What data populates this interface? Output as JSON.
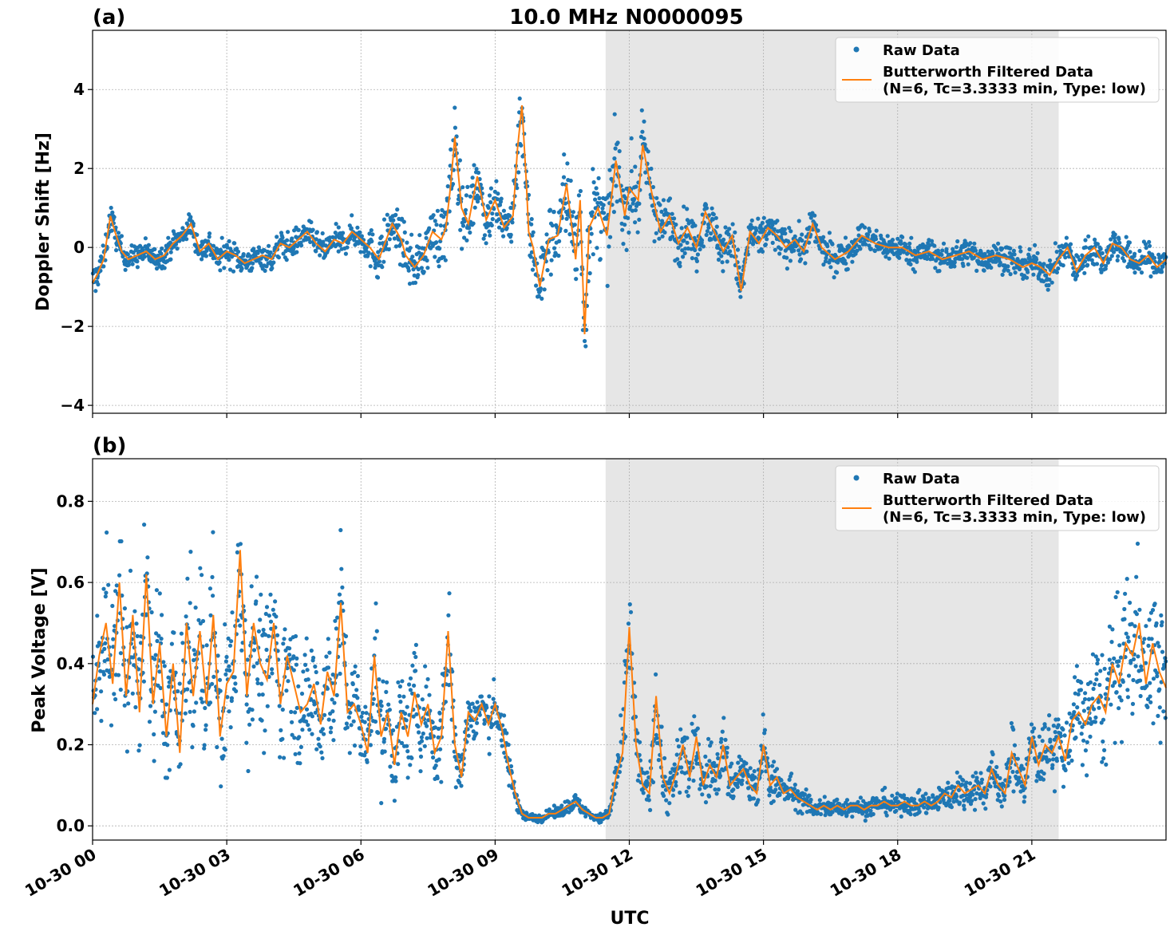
{
  "figure": {
    "title": "10.0 MHz N0000095",
    "xlabel": "UTC",
    "x_ticks": [
      "10-30 00",
      "10-30 03",
      "10-30 06",
      "10-30 09",
      "10-30 12",
      "10-30 15",
      "10-30 18",
      "10-30 21"
    ]
  },
  "colors": {
    "raw": "#1f77b4",
    "filtered": "#ff7f0e",
    "shade": "#e6e6e6",
    "grid": "#b0b0b0"
  },
  "chart_data": [
    {
      "type": "scatter",
      "panel_label": "(a)",
      "ylabel": "Doppler Shift [Hz]",
      "x_unit": "hours UTC on 10-30",
      "xlim": [
        0,
        24
      ],
      "ylim": [
        -4.2,
        5.5
      ],
      "y_ticks": [
        "4",
        "2",
        "0",
        "−2",
        "−4"
      ],
      "y_tick_values": [
        4,
        2,
        0,
        -2,
        -4
      ],
      "grid": true,
      "legend_position": "top-right",
      "legend": [
        "Raw Data",
        "Butterworth Filtered Data",
        "(N=6, Tc=3.3333 min, Type: low)"
      ],
      "shaded_interval": [
        11.47,
        21.6
      ],
      "series": [
        {
          "name": "Butterworth Filtered Data",
          "kind": "line",
          "x": [
            0,
            0.1,
            0.25,
            0.4,
            0.5,
            0.65,
            0.8,
            1.0,
            1.2,
            1.4,
            1.6,
            1.8,
            2.0,
            2.2,
            2.4,
            2.6,
            2.8,
            3.0,
            3.2,
            3.4,
            3.6,
            3.8,
            4.0,
            4.2,
            4.4,
            4.6,
            4.8,
            5.0,
            5.2,
            5.4,
            5.6,
            5.8,
            6.0,
            6.2,
            6.4,
            6.5,
            6.7,
            6.9,
            7.0,
            7.2,
            7.4,
            7.6,
            7.8,
            7.9,
            8.0,
            8.1,
            8.25,
            8.4,
            8.6,
            8.8,
            9.0,
            9.2,
            9.4,
            9.5,
            9.6,
            9.7,
            9.75,
            9.85,
            10.0,
            10.2,
            10.4,
            10.6,
            10.8,
            10.9,
            11.0,
            11.1,
            11.3,
            11.5,
            11.7,
            11.9,
            12.0,
            12.2,
            12.3,
            12.5,
            12.7,
            12.9,
            13.1,
            13.3,
            13.5,
            13.7,
            13.9,
            14.1,
            14.3,
            14.5,
            14.7,
            14.9,
            15.1,
            15.3,
            15.5,
            15.7,
            15.9,
            16.1,
            16.3,
            16.6,
            16.9,
            17.2,
            17.5,
            17.8,
            18.1,
            18.4,
            18.7,
            19.0,
            19.3,
            19.6,
            19.9,
            20.2,
            20.5,
            20.8,
            21.0,
            21.2,
            21.4,
            21.6,
            21.8,
            22.0,
            22.2,
            22.4,
            22.6,
            22.8,
            23.0,
            23.2,
            23.4,
            23.6,
            23.8,
            24.0
          ],
          "y": [
            -0.9,
            -0.7,
            -0.3,
            0.8,
            0.4,
            -0.1,
            -0.3,
            -0.2,
            -0.1,
            -0.3,
            -0.2,
            0.1,
            0.3,
            0.6,
            -0.1,
            0.1,
            -0.3,
            -0.1,
            -0.2,
            -0.4,
            -0.3,
            -0.2,
            -0.3,
            0.1,
            0.0,
            0.2,
            0.4,
            0.1,
            -0.1,
            0.2,
            0.1,
            0.4,
            0.2,
            0.0,
            -0.3,
            0.0,
            0.6,
            0.2,
            -0.2,
            -0.5,
            -0.2,
            0.4,
            0.2,
            0.5,
            1.5,
            2.8,
            1.0,
            0.6,
            1.8,
            0.7,
            1.2,
            0.5,
            0.8,
            2.5,
            3.6,
            1.6,
            0.4,
            0.0,
            -1.0,
            0.2,
            0.3,
            1.6,
            -0.3,
            1.2,
            -2.2,
            0.5,
            1.0,
            0.3,
            2.2,
            0.8,
            1.5,
            1.2,
            2.6,
            1.4,
            0.4,
            0.8,
            0.1,
            0.5,
            0.0,
            0.9,
            0.4,
            -0.1,
            0.3,
            -1.1,
            0.4,
            0.1,
            0.5,
            0.3,
            0.0,
            0.2,
            -0.1,
            0.6,
            0.0,
            -0.3,
            -0.1,
            0.3,
            0.1,
            0.0,
            0.0,
            -0.2,
            -0.1,
            -0.3,
            -0.2,
            -0.1,
            -0.3,
            -0.2,
            -0.3,
            -0.5,
            -0.4,
            -0.5,
            -0.7,
            -0.3,
            0.0,
            -0.6,
            -0.2,
            0.0,
            -0.4,
            0.1,
            0.0,
            -0.3,
            -0.4,
            -0.2,
            -0.5,
            -0.3
          ]
        },
        {
          "name": "Raw Data",
          "kind": "points",
          "spread": [
            0.45,
            0.4,
            0.35,
            0.35,
            0.35,
            0.35,
            0.3,
            0.3,
            0.3,
            0.3,
            0.3,
            0.3,
            0.3,
            0.3,
            0.35,
            0.35,
            0.35,
            0.35,
            0.35,
            0.35,
            0.3,
            0.35,
            0.35,
            0.35,
            0.35,
            0.35,
            0.35,
            0.3,
            0.35,
            0.35,
            0.35,
            0.35,
            0.35,
            0.5,
            0.6,
            0.6,
            0.6,
            0.6,
            0.6,
            0.6,
            0.6,
            0.7,
            0.8,
            0.9,
            0.9,
            0.9,
            0.9,
            0.8,
            0.8,
            0.8,
            0.7,
            0.7,
            0.8,
            1.0,
            1.0,
            1.0,
            1.0,
            0.9,
            0.9,
            0.9,
            0.9,
            1.1,
            1.2,
            1.3,
            1.3,
            1.3,
            1.2,
            1.1,
            1.0,
            1.0,
            1.0,
            1.0,
            0.9,
            0.8,
            0.7,
            0.6,
            0.6,
            0.6,
            0.6,
            0.6,
            0.6,
            0.55,
            0.55,
            0.55,
            0.5,
            0.5,
            0.5,
            0.45,
            0.45,
            0.45,
            0.45,
            0.45,
            0.4,
            0.4,
            0.4,
            0.35,
            0.35,
            0.35,
            0.35,
            0.35,
            0.35,
            0.35,
            0.35,
            0.35,
            0.35,
            0.35,
            0.35,
            0.35,
            0.4,
            0.4,
            0.4,
            0.4,
            0.4,
            0.4,
            0.4,
            0.4,
            0.4,
            0.4,
            0.4,
            0.4,
            0.4,
            0.4,
            0.4,
            0.4
          ]
        }
      ]
    },
    {
      "type": "scatter",
      "panel_label": "(b)",
      "ylabel": "Peak Voltage [V]",
      "x_unit": "hours UTC on 10-30",
      "xlim": [
        0,
        24
      ],
      "ylim": [
        -0.035,
        0.905
      ],
      "y_ticks": [
        "0.8",
        "0.6",
        "0.4",
        "0.2",
        "0.0"
      ],
      "y_tick_values": [
        0.8,
        0.6,
        0.4,
        0.2,
        0.0
      ],
      "grid": true,
      "legend_position": "top-right",
      "legend": [
        "Raw Data",
        "Butterworth Filtered Data",
        "(N=6, Tc=3.3333 min, Type: low)"
      ],
      "shaded_interval": [
        11.47,
        21.6
      ],
      "series": [
        {
          "name": "Butterworth Filtered Data",
          "kind": "line",
          "x": [
            0,
            0.15,
            0.3,
            0.45,
            0.6,
            0.75,
            0.9,
            1.05,
            1.2,
            1.35,
            1.5,
            1.65,
            1.8,
            1.95,
            2.1,
            2.25,
            2.4,
            2.55,
            2.7,
            2.85,
            3.0,
            3.15,
            3.3,
            3.45,
            3.6,
            3.75,
            3.9,
            4.05,
            4.2,
            4.35,
            4.5,
            4.65,
            4.8,
            4.95,
            5.1,
            5.25,
            5.4,
            5.55,
            5.7,
            5.85,
            6.0,
            6.15,
            6.3,
            6.45,
            6.6,
            6.75,
            6.9,
            7.05,
            7.2,
            7.35,
            7.5,
            7.65,
            7.8,
            7.95,
            8.1,
            8.25,
            8.4,
            8.55,
            8.7,
            8.85,
            9.0,
            9.15,
            9.3,
            9.45,
            9.6,
            9.75,
            9.9,
            10.05,
            10.2,
            10.35,
            10.5,
            10.65,
            10.8,
            10.95,
            11.1,
            11.25,
            11.4,
            11.55,
            11.7,
            11.85,
            12.0,
            12.15,
            12.3,
            12.45,
            12.6,
            12.75,
            12.9,
            13.05,
            13.2,
            13.35,
            13.5,
            13.65,
            13.8,
            13.95,
            14.1,
            14.25,
            14.4,
            14.55,
            14.7,
            14.85,
            15.0,
            15.15,
            15.3,
            15.45,
            15.6,
            15.75,
            15.9,
            16.05,
            16.2,
            16.35,
            16.5,
            16.65,
            16.8,
            16.95,
            17.1,
            17.25,
            17.4,
            17.55,
            17.7,
            17.85,
            18.0,
            18.15,
            18.3,
            18.45,
            18.6,
            18.75,
            18.9,
            19.05,
            19.2,
            19.35,
            19.5,
            19.65,
            19.8,
            19.95,
            20.1,
            20.25,
            20.4,
            20.55,
            20.7,
            20.85,
            21.0,
            21.15,
            21.3,
            21.45,
            21.6,
            21.75,
            21.9,
            22.05,
            22.2,
            22.35,
            22.5,
            22.65,
            22.8,
            22.95,
            23.1,
            23.25,
            23.4,
            23.55,
            23.7,
            23.85,
            24.0
          ],
          "y": [
            0.3,
            0.42,
            0.5,
            0.35,
            0.6,
            0.32,
            0.52,
            0.28,
            0.62,
            0.3,
            0.45,
            0.22,
            0.4,
            0.18,
            0.5,
            0.32,
            0.48,
            0.3,
            0.52,
            0.22,
            0.35,
            0.38,
            0.68,
            0.32,
            0.5,
            0.4,
            0.36,
            0.5,
            0.3,
            0.42,
            0.35,
            0.28,
            0.3,
            0.35,
            0.25,
            0.38,
            0.32,
            0.55,
            0.28,
            0.3,
            0.25,
            0.18,
            0.42,
            0.22,
            0.28,
            0.15,
            0.28,
            0.22,
            0.33,
            0.25,
            0.3,
            0.18,
            0.22,
            0.48,
            0.2,
            0.12,
            0.28,
            0.26,
            0.3,
            0.25,
            0.3,
            0.24,
            0.15,
            0.08,
            0.03,
            0.02,
            0.02,
            0.02,
            0.03,
            0.03,
            0.04,
            0.05,
            0.06,
            0.04,
            0.03,
            0.02,
            0.02,
            0.03,
            0.12,
            0.18,
            0.49,
            0.2,
            0.1,
            0.08,
            0.32,
            0.12,
            0.08,
            0.13,
            0.2,
            0.12,
            0.22,
            0.1,
            0.15,
            0.12,
            0.2,
            0.1,
            0.12,
            0.14,
            0.1,
            0.08,
            0.2,
            0.1,
            0.12,
            0.08,
            0.09,
            0.07,
            0.06,
            0.05,
            0.04,
            0.05,
            0.04,
            0.05,
            0.04,
            0.05,
            0.05,
            0.04,
            0.05,
            0.05,
            0.06,
            0.05,
            0.05,
            0.06,
            0.05,
            0.05,
            0.06,
            0.05,
            0.06,
            0.08,
            0.07,
            0.1,
            0.08,
            0.09,
            0.1,
            0.08,
            0.14,
            0.1,
            0.08,
            0.18,
            0.14,
            0.1,
            0.22,
            0.15,
            0.2,
            0.18,
            0.22,
            0.16,
            0.26,
            0.28,
            0.25,
            0.3,
            0.32,
            0.28,
            0.4,
            0.35,
            0.45,
            0.42,
            0.5,
            0.35,
            0.45,
            0.38,
            0.34
          ]
        },
        {
          "name": "Raw Data",
          "kind": "points",
          "spread": [
            0.18,
            0.2,
            0.2,
            0.18,
            0.2,
            0.2,
            0.18,
            0.18,
            0.2,
            0.2,
            0.18,
            0.15,
            0.18,
            0.15,
            0.2,
            0.2,
            0.2,
            0.2,
            0.2,
            0.18,
            0.18,
            0.2,
            0.2,
            0.2,
            0.18,
            0.18,
            0.18,
            0.18,
            0.15,
            0.15,
            0.15,
            0.15,
            0.15,
            0.15,
            0.15,
            0.15,
            0.15,
            0.18,
            0.15,
            0.12,
            0.12,
            0.12,
            0.15,
            0.15,
            0.12,
            0.1,
            0.12,
            0.12,
            0.12,
            0.12,
            0.12,
            0.1,
            0.12,
            0.15,
            0.1,
            0.06,
            0.06,
            0.06,
            0.06,
            0.06,
            0.06,
            0.06,
            0.05,
            0.03,
            0.015,
            0.01,
            0.01,
            0.01,
            0.01,
            0.015,
            0.015,
            0.02,
            0.02,
            0.015,
            0.01,
            0.01,
            0.01,
            0.02,
            0.06,
            0.08,
            0.15,
            0.1,
            0.05,
            0.05,
            0.12,
            0.08,
            0.06,
            0.08,
            0.1,
            0.08,
            0.1,
            0.06,
            0.08,
            0.06,
            0.08,
            0.06,
            0.06,
            0.06,
            0.06,
            0.05,
            0.08,
            0.05,
            0.05,
            0.04,
            0.04,
            0.03,
            0.03,
            0.03,
            0.025,
            0.025,
            0.025,
            0.025,
            0.025,
            0.025,
            0.025,
            0.025,
            0.025,
            0.025,
            0.03,
            0.025,
            0.025,
            0.03,
            0.025,
            0.025,
            0.03,
            0.025,
            0.03,
            0.04,
            0.035,
            0.05,
            0.04,
            0.045,
            0.05,
            0.04,
            0.06,
            0.05,
            0.04,
            0.08,
            0.06,
            0.05,
            0.08,
            0.07,
            0.08,
            0.08,
            0.1,
            0.08,
            0.12,
            0.12,
            0.12,
            0.14,
            0.15,
            0.14,
            0.18,
            0.16,
            0.18,
            0.18,
            0.2,
            0.16,
            0.18,
            0.16,
            0.15
          ]
        }
      ]
    }
  ]
}
